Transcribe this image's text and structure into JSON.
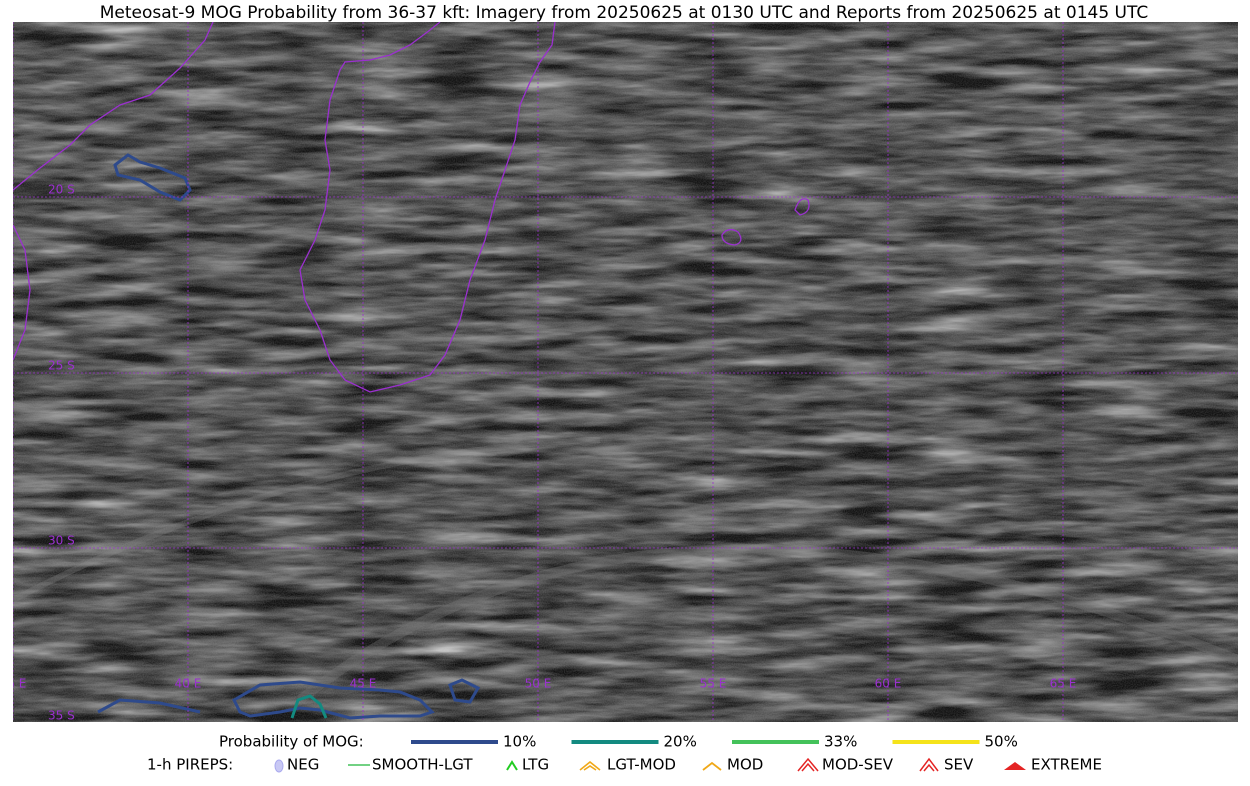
{
  "title": "Meteosat-9 MOG Probability from 36-37 kft: Imagery from 20250625 at 0130 UTC and Reports from 20250625 at 0145 UTC",
  "map": {
    "lat_labels": [
      "20 S",
      "25 S",
      "30 S",
      "35 S"
    ],
    "lon_labels": [
      "35 E",
      "40 E",
      "45 E",
      "50 E",
      "55 E",
      "60 E",
      "65 E"
    ],
    "grid_color": "#9b30d0"
  },
  "legend": {
    "probability": {
      "label": "Probability of MOG:",
      "items": [
        {
          "label": "10%",
          "color": "#2e4a8c"
        },
        {
          "label": "20%",
          "color": "#138a80"
        },
        {
          "label": "33%",
          "color": "#44c25a"
        },
        {
          "label": "50%",
          "color": "#f5e31a"
        }
      ]
    },
    "pireps": {
      "label": "1-h PIREPS:",
      "items": [
        "NEG",
        "SMOOTH-LGT",
        "LTG",
        "LGT-MOD",
        "MOD",
        "MOD-SEV",
        "SEV",
        "EXTREME"
      ]
    }
  }
}
